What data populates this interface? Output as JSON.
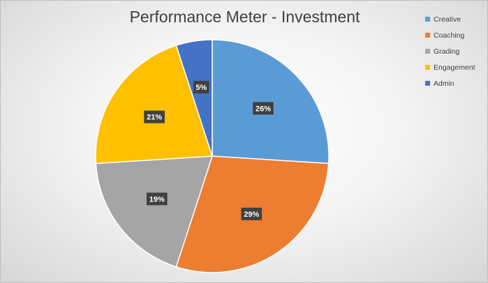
{
  "chart_data": {
    "type": "pie",
    "title": "Performance Meter - Investment",
    "categories": [
      "Creative",
      "Coaching",
      "Grading",
      "Engagement",
      "Admin"
    ],
    "values": [
      26,
      29,
      19,
      21,
      5
    ],
    "data_labels": [
      "26%",
      "29%",
      "19%",
      "21%",
      "5%"
    ],
    "colors": [
      "#5b9bd5",
      "#ed7d31",
      "#a5a5a5",
      "#ffc000",
      "#4472c4"
    ],
    "start_angle_deg": 0,
    "direction": "clockwise",
    "legend_position": "top-right"
  }
}
